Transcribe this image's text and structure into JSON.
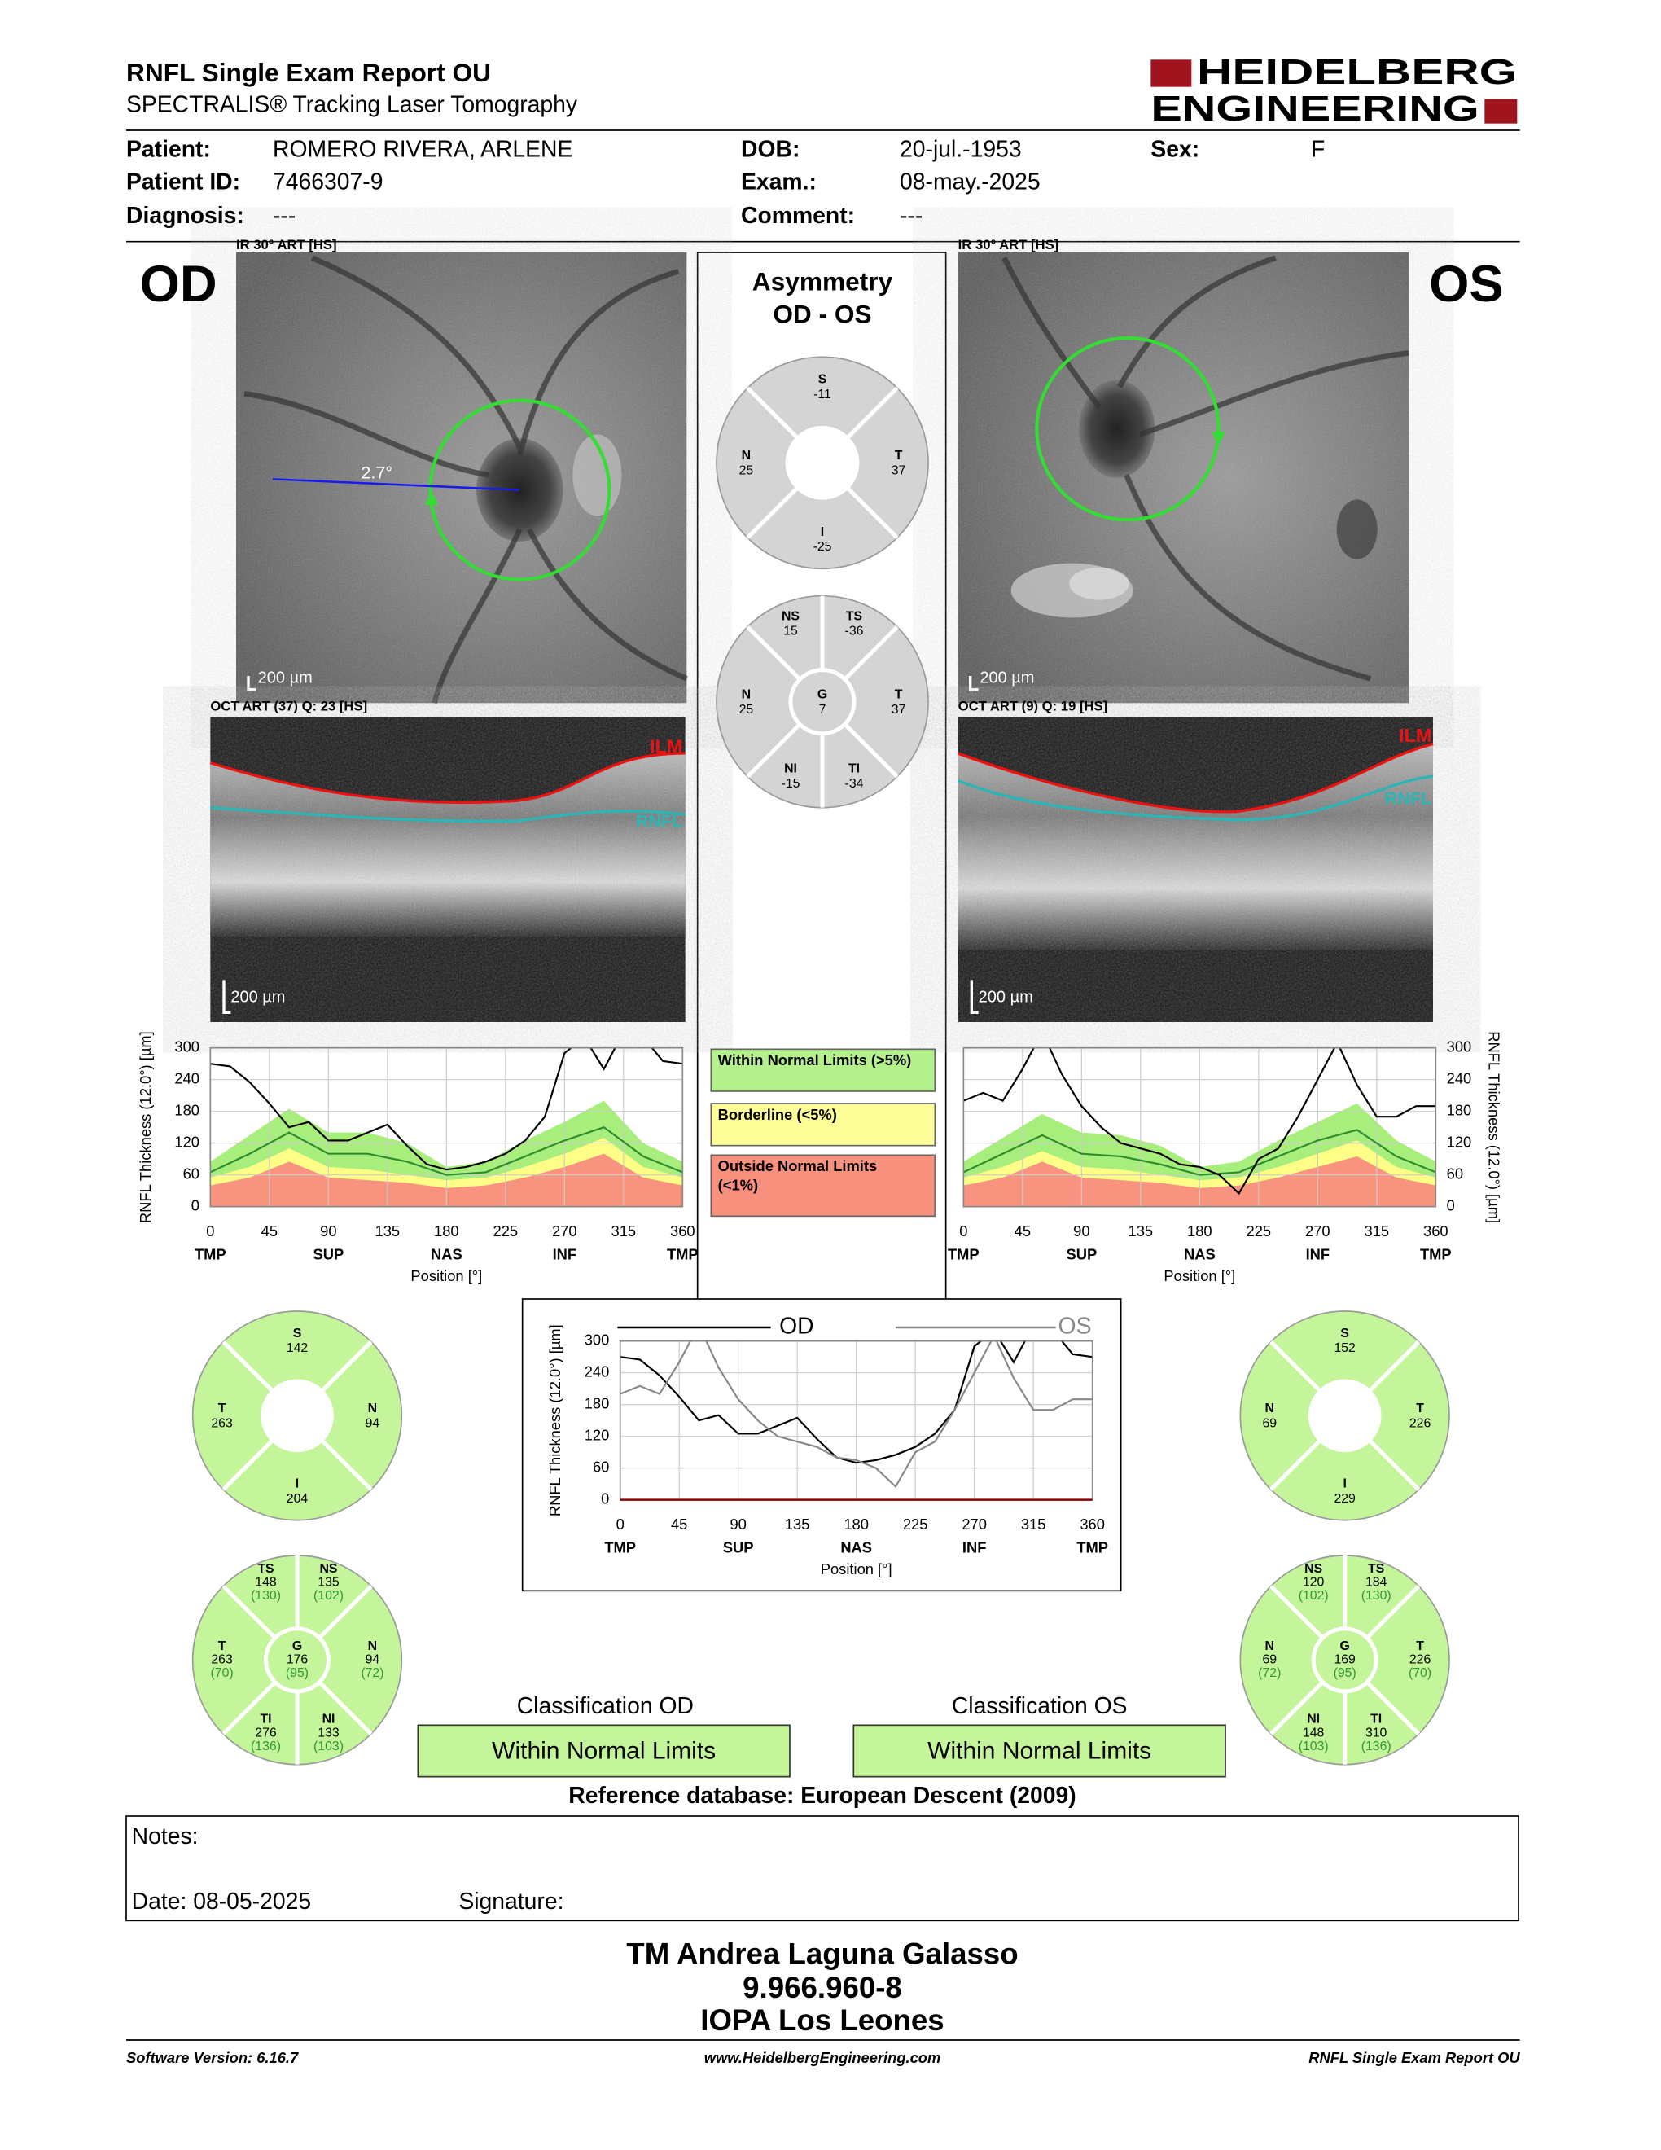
{
  "header": {
    "title": "RNFL Single Exam Report OU",
    "subtitle": "SPECTRALIS® Tracking Laser Tomography",
    "logo": [
      "HEIDELBERG",
      "ENGINEERING"
    ]
  },
  "patient": {
    "fields": [
      {
        "label": "Patient:",
        "value": "ROMERO RIVERA, ARLENE"
      },
      {
        "label": "DOB:",
        "value": "20-jul.-1953"
      },
      {
        "label": "Sex:",
        "value": "F"
      },
      {
        "label": "Patient ID:",
        "value": "7466307-9"
      },
      {
        "label": "Exam.:",
        "value": "08-may.-2025"
      },
      {
        "label": "Diagnosis:",
        "value": "---"
      },
      {
        "label": "Comment:",
        "value": "---"
      }
    ]
  },
  "od": {
    "eye": "OD",
    "ir_label": "IR 30° ART [HS]",
    "scale": "200 µm",
    "angle": "2.7°",
    "oct_label": "OCT ART (37) Q: 23 [HS]",
    "oct_scale": "200 µm",
    "ilm": "ILM",
    "rnfl": "RNFL"
  },
  "os": {
    "eye": "OS",
    "ir_label": "IR 30° ART [HS]",
    "scale": "200 µm",
    "oct_label": "OCT ART (9) Q: 19 [HS]",
    "oct_scale": "200 µm",
    "ilm": "ILM",
    "rnfl": "RNFL"
  },
  "asymmetry": {
    "title": [
      "Asymmetry",
      "OD - OS"
    ]
  },
  "legend": [
    {
      "color": "#b4f08c",
      "lines": [
        "Within Normal Limits (>5%)"
      ]
    },
    {
      "color": "#ffff99",
      "lines": [
        "Borderline (<5%)"
      ]
    },
    {
      "color": "#f7907c",
      "lines": [
        "Outside Normal Limits",
        "(<1%)"
      ]
    }
  ],
  "sectors": {
    "asym_quadrants": {
      "color": "#d4d4d4",
      "regions": [
        {
          "label": "S",
          "value": -11
        },
        {
          "label": "N",
          "value": 25
        },
        {
          "label": "T",
          "value": 37
        },
        {
          "label": "I",
          "value": -25
        }
      ]
    },
    "asym_sectors": {
      "color": "#d4d4d4",
      "regions": [
        {
          "label": "NS",
          "value": 15
        },
        {
          "label": "TS",
          "value": -36
        },
        {
          "label": "N",
          "value": 25
        },
        {
          "label": "G",
          "value": 7
        },
        {
          "label": "T",
          "value": 37
        },
        {
          "label": "NI",
          "value": -15
        },
        {
          "label": "TI",
          "value": -34
        }
      ]
    },
    "od_quadrants": {
      "color": "#c4f59a",
      "regions": [
        {
          "label": "S",
          "value": 142
        },
        {
          "label": "T",
          "value": 263
        },
        {
          "label": "N",
          "value": 94
        },
        {
          "label": "I",
          "value": 204
        }
      ]
    },
    "od_sectors": {
      "color": "#c4f59a",
      "regions": [
        {
          "label": "TS",
          "value": 148,
          "normal": "(130)"
        },
        {
          "label": "NS",
          "value": 135,
          "normal": "(102)"
        },
        {
          "label": "T",
          "value": 263,
          "normal": "(70)"
        },
        {
          "label": "G",
          "value": 176,
          "normal": "(95)"
        },
        {
          "label": "N",
          "value": 94,
          "normal": "(72)"
        },
        {
          "label": "TI",
          "value": 276,
          "normal": "(136)"
        },
        {
          "label": "NI",
          "value": 133,
          "normal": "(103)"
        }
      ]
    },
    "os_quadrants": {
      "color": "#c4f59a",
      "regions": [
        {
          "label": "S",
          "value": 152
        },
        {
          "label": "N",
          "value": 69
        },
        {
          "label": "T",
          "value": 226
        },
        {
          "label": "I",
          "value": 229
        }
      ]
    },
    "os_sectors": {
      "color": "#c4f59a",
      "regions": [
        {
          "label": "NS",
          "value": 120,
          "normal": "(102)"
        },
        {
          "label": "TS",
          "value": 184,
          "normal": "(130)"
        },
        {
          "label": "N",
          "value": 69,
          "normal": "(72)"
        },
        {
          "label": "G",
          "value": 169,
          "normal": "(95)"
        },
        {
          "label": "T",
          "value": 226,
          "normal": "(70)"
        },
        {
          "label": "NI",
          "value": 148,
          "normal": "(103)"
        },
        {
          "label": "TI",
          "value": 310,
          "normal": "(136)"
        }
      ]
    }
  },
  "plots": {
    "od_plot": {
      "type": "line",
      "y_label": "RNFL Thickness (12.0°) [µm]",
      "x_label": "Position [°]",
      "xlim": [
        0,
        360
      ],
      "ylim": [
        0,
        300
      ],
      "xticks": [
        0,
        45,
        90,
        135,
        180,
        225,
        270,
        315,
        360
      ],
      "yticks": [
        0,
        60,
        120,
        180,
        240,
        300
      ],
      "x_regions": [
        {
          "value": 0,
          "label": "TMP"
        },
        {
          "value": 90,
          "label": "SUP"
        },
        {
          "value": 180,
          "label": "NAS"
        },
        {
          "value": 270,
          "label": "INF"
        },
        {
          "value": 360,
          "label": "TMP"
        }
      ],
      "band_x": [
        0,
        30,
        60,
        90,
        120,
        150,
        180,
        210,
        240,
        270,
        300,
        330,
        360
      ],
      "bands": [
        {
          "color": "#a8ee7c",
          "values": [
            85,
            135,
            185,
            140,
            140,
            120,
            75,
            85,
            125,
            160,
            200,
            120,
            85
          ]
        },
        {
          "color": "#ffff88",
          "values": [
            55,
            75,
            110,
            75,
            70,
            60,
            50,
            55,
            75,
            100,
            130,
            75,
            55
          ]
        },
        {
          "color": "#f7937f",
          "values": [
            40,
            55,
            85,
            55,
            50,
            45,
            35,
            40,
            55,
            75,
            100,
            55,
            40
          ]
        }
      ],
      "median": {
        "color": "#2e8b2e",
        "values": [
          65,
          100,
          140,
          100,
          100,
          85,
          60,
          65,
          95,
          125,
          150,
          95,
          65
        ]
      },
      "x": [
        0,
        15,
        30,
        45,
        60,
        75,
        90,
        105,
        120,
        135,
        150,
        165,
        180,
        195,
        210,
        225,
        240,
        255,
        270,
        285,
        300,
        315,
        330,
        345,
        360
      ],
      "series": [
        {
          "color": "#000000",
          "values": [
            270,
            265,
            235,
            195,
            150,
            160,
            125,
            125,
            140,
            155,
            115,
            80,
            70,
            75,
            85,
            100,
            125,
            170,
            290,
            320,
            260,
            330,
            320,
            275,
            270
          ]
        }
      ]
    },
    "os_plot": {
      "type": "line",
      "y_label": "RNFL Thickness (12.0°) [µm]",
      "x_label": "Position [°]",
      "xlim": [
        0,
        360
      ],
      "ylim": [
        0,
        300
      ],
      "xticks": [
        0,
        45,
        90,
        135,
        180,
        225,
        270,
        315,
        360
      ],
      "yticks": [
        0,
        60,
        120,
        180,
        240,
        300
      ],
      "x_regions": [
        {
          "value": 0,
          "label": "TMP"
        },
        {
          "value": 90,
          "label": "SUP"
        },
        {
          "value": 180,
          "label": "NAS"
        },
        {
          "value": 270,
          "label": "INF"
        },
        {
          "value": 360,
          "label": "TMP"
        }
      ],
      "band_x": [
        0,
        30,
        60,
        90,
        120,
        150,
        180,
        210,
        240,
        270,
        300,
        330,
        360
      ],
      "bands": [
        {
          "color": "#a8ee7c",
          "values": [
            85,
            130,
            175,
            140,
            135,
            115,
            75,
            85,
            125,
            160,
            195,
            125,
            85
          ]
        },
        {
          "color": "#ffff88",
          "values": [
            55,
            75,
            105,
            75,
            70,
            60,
            50,
            55,
            75,
            100,
            125,
            75,
            55
          ]
        },
        {
          "color": "#f7937f",
          "values": [
            40,
            55,
            85,
            55,
            50,
            45,
            35,
            40,
            55,
            75,
            95,
            55,
            40
          ]
        }
      ],
      "median": {
        "color": "#2e8b2e",
        "values": [
          65,
          100,
          135,
          100,
          95,
          80,
          60,
          65,
          95,
          125,
          145,
          95,
          65
        ]
      },
      "x": [
        0,
        15,
        30,
        45,
        60,
        75,
        90,
        105,
        120,
        135,
        150,
        165,
        180,
        195,
        210,
        225,
        240,
        255,
        270,
        285,
        300,
        315,
        330,
        345,
        360
      ],
      "series": [
        {
          "color": "#000000",
          "values": [
            200,
            215,
            200,
            260,
            330,
            250,
            190,
            150,
            120,
            110,
            100,
            80,
            75,
            60,
            25,
            90,
            110,
            170,
            240,
            310,
            230,
            170,
            170,
            190,
            190
          ]
        }
      ]
    },
    "ou_plot": {
      "type": "line",
      "y_label": "RNFL Thickness (12.0°) [µm]",
      "x_label": "Position [°]",
      "xlim": [
        0,
        360
      ],
      "ylim": [
        0,
        300
      ],
      "xticks": [
        0,
        45,
        90,
        135,
        180,
        225,
        270,
        315,
        360
      ],
      "yticks": [
        0,
        60,
        120,
        180,
        240,
        300
      ],
      "x_regions": [
        {
          "value": 0,
          "label": "TMP"
        },
        {
          "value": 90,
          "label": "SUP"
        },
        {
          "value": 180,
          "label": "NAS"
        },
        {
          "value": 270,
          "label": "INF"
        },
        {
          "value": 360,
          "label": "TMP"
        }
      ],
      "x": [
        0,
        15,
        30,
        45,
        60,
        75,
        90,
        105,
        120,
        135,
        150,
        165,
        180,
        195,
        210,
        225,
        240,
        255,
        270,
        285,
        300,
        315,
        330,
        345,
        360
      ],
      "series": [
        {
          "name": "OD",
          "color": "#000000",
          "values": [
            270,
            265,
            235,
            195,
            150,
            160,
            125,
            125,
            140,
            155,
            115,
            80,
            70,
            75,
            85,
            100,
            125,
            170,
            290,
            320,
            260,
            330,
            320,
            275,
            270
          ]
        },
        {
          "name": "OS",
          "color": "#888888",
          "values": [
            200,
            215,
            200,
            260,
            330,
            250,
            190,
            150,
            120,
            110,
            100,
            80,
            75,
            60,
            25,
            90,
            110,
            170,
            240,
            310,
            230,
            170,
            170,
            190,
            190
          ]
        }
      ]
    }
  },
  "classification": {
    "od_title": "Classification OD",
    "od_result": "Within Normal Limits",
    "os_title": "Classification OS",
    "os_result": "Within Normal Limits",
    "reference": "Reference database: European Descent (2009)"
  },
  "notes": {
    "label": "Notes:",
    "date": "Date: 08-05-2025",
    "signature": "Signature:"
  },
  "signer": [
    "TM Andrea Laguna Galasso",
    "9.966.960-8",
    "IOPA Los Leones"
  ],
  "footer": {
    "left": "Software Version: 6.16.7",
    "center": "www.HeidelbergEngineering.com",
    "right": "RNFL Single Exam Report OU"
  }
}
